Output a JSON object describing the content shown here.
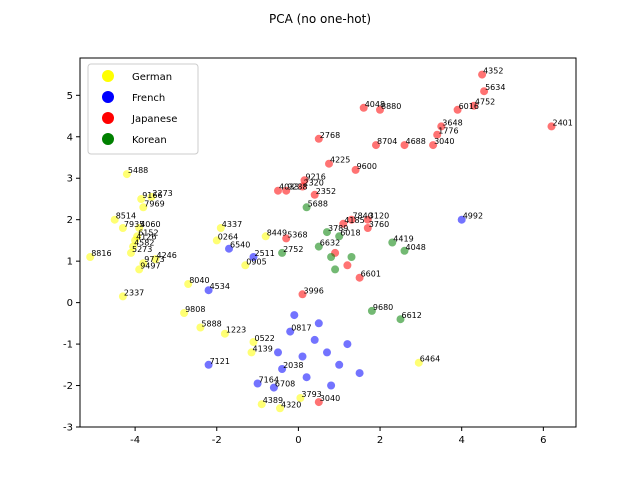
{
  "chart_data": {
    "type": "scatter",
    "title": "PCA (no one-hot)",
    "xlabel": "",
    "ylabel": "",
    "xlim": [
      -5.35,
      6.8
    ],
    "ylim": [
      -3.0,
      5.9
    ],
    "x_ticks": [
      -4,
      -2,
      0,
      2,
      4,
      6
    ],
    "y_ticks": [
      -3,
      -2,
      -1,
      0,
      1,
      2,
      3,
      4,
      5
    ],
    "grid": false,
    "legend_position": "top-left",
    "series": [
      {
        "name": "German",
        "color": "#ffff00",
        "points": [
          {
            "x": -4.2,
            "y": 3.1,
            "label": "5488"
          },
          {
            "x": -3.85,
            "y": 2.5,
            "label": "9166"
          },
          {
            "x": -3.6,
            "y": 2.55,
            "label": "2273"
          },
          {
            "x": -3.8,
            "y": 2.3,
            "label": "7969"
          },
          {
            "x": -4.5,
            "y": 2.0,
            "label": "8514"
          },
          {
            "x": -4.3,
            "y": 1.8,
            "label": "7935"
          },
          {
            "x": -3.9,
            "y": 1.8,
            "label": "4060"
          },
          {
            "x": -3.95,
            "y": 1.6,
            "label": "6152"
          },
          {
            "x": -4.0,
            "y": 1.5,
            "label": "4126"
          },
          {
            "x": -4.05,
            "y": 1.35,
            "label": "4582"
          },
          {
            "x": -4.1,
            "y": 1.2,
            "label": "5273"
          },
          {
            "x": -5.1,
            "y": 1.1,
            "label": "8816"
          },
          {
            "x": -3.5,
            "y": 1.05,
            "label": "4246"
          },
          {
            "x": -3.8,
            "y": 0.95,
            "label": "9773"
          },
          {
            "x": -3.9,
            "y": 0.8,
            "label": "9497"
          },
          {
            "x": -1.9,
            "y": 1.8,
            "label": "4337"
          },
          {
            "x": -2.0,
            "y": 1.5,
            "label": "0264"
          },
          {
            "x": -0.8,
            "y": 1.6,
            "label": "8449"
          },
          {
            "x": -1.3,
            "y": 0.9,
            "label": "0905"
          },
          {
            "x": -4.3,
            "y": 0.15,
            "label": "2337"
          },
          {
            "x": -2.7,
            "y": 0.45,
            "label": "8040"
          },
          {
            "x": -2.8,
            "y": -0.25,
            "label": "9808"
          },
          {
            "x": -2.4,
            "y": -0.6,
            "label": "5888"
          },
          {
            "x": -1.8,
            "y": -0.75,
            "label": "1223"
          },
          {
            "x": -1.1,
            "y": -0.95,
            "label": "0522"
          },
          {
            "x": -1.15,
            "y": -1.2,
            "label": "4139"
          },
          {
            "x": -0.9,
            "y": -2.45,
            "label": "4389"
          },
          {
            "x": -0.45,
            "y": -2.55,
            "label": "4320"
          },
          {
            "x": 0.05,
            "y": -2.3,
            "label": "3793"
          },
          {
            "x": 2.95,
            "y": -1.45,
            "label": "6464"
          }
        ]
      },
      {
        "name": "French",
        "color": "#0000ff",
        "points": [
          {
            "x": 4.0,
            "y": 2.0,
            "label": "4992"
          },
          {
            "x": -2.2,
            "y": 0.3,
            "label": "4534"
          },
          {
            "x": -1.7,
            "y": 1.3,
            "label": "6540"
          },
          {
            "x": -1.1,
            "y": 1.1,
            "label": "2511"
          },
          {
            "x": -2.2,
            "y": -1.5,
            "label": "7121"
          },
          {
            "x": -1.0,
            "y": -1.95,
            "label": "7164"
          },
          {
            "x": -0.6,
            "y": -2.05,
            "label": "6708"
          },
          {
            "x": -0.4,
            "y": -1.6,
            "label": "2038"
          },
          {
            "x": -0.2,
            "y": -0.7,
            "label": "0817"
          },
          {
            "x": 0.4,
            "y": -0.9,
            "label": ""
          },
          {
            "x": 0.7,
            "y": -1.2,
            "label": ""
          },
          {
            "x": 1.0,
            "y": -1.5,
            "label": ""
          },
          {
            "x": 0.2,
            "y": -1.8,
            "label": ""
          },
          {
            "x": 0.8,
            "y": -2.0,
            "label": ""
          },
          {
            "x": 1.2,
            "y": -1.0,
            "label": ""
          },
          {
            "x": -0.5,
            "y": -1.2,
            "label": ""
          },
          {
            "x": 0.1,
            "y": -1.3,
            "label": ""
          },
          {
            "x": 1.5,
            "y": -1.7,
            "label": ""
          },
          {
            "x": 0.5,
            "y": -0.5,
            "label": ""
          },
          {
            "x": -0.1,
            "y": -0.3,
            "label": ""
          }
        ]
      },
      {
        "name": "Japanese",
        "color": "#ff0000",
        "points": [
          {
            "x": 4.5,
            "y": 5.5,
            "label": "4352"
          },
          {
            "x": 4.55,
            "y": 5.1,
            "label": "5634"
          },
          {
            "x": 4.3,
            "y": 4.75,
            "label": "4752"
          },
          {
            "x": 3.9,
            "y": 4.65,
            "label": "6016"
          },
          {
            "x": 6.2,
            "y": 4.25,
            "label": "2401"
          },
          {
            "x": 3.5,
            "y": 4.25,
            "label": "3648"
          },
          {
            "x": 3.4,
            "y": 4.05,
            "label": "1776"
          },
          {
            "x": 3.3,
            "y": 3.8,
            "label": "3040"
          },
          {
            "x": 2.6,
            "y": 3.8,
            "label": "4688"
          },
          {
            "x": 1.9,
            "y": 3.8,
            "label": "8704"
          },
          {
            "x": 1.6,
            "y": 4.7,
            "label": "4048"
          },
          {
            "x": 2.0,
            "y": 4.65,
            "label": "8880"
          },
          {
            "x": 0.5,
            "y": 3.95,
            "label": "2768"
          },
          {
            "x": 0.75,
            "y": 3.35,
            "label": "4225"
          },
          {
            "x": 1.4,
            "y": 3.2,
            "label": "9600"
          },
          {
            "x": 0.15,
            "y": 2.95,
            "label": "9216"
          },
          {
            "x": 0.1,
            "y": 2.8,
            "label": "2320"
          },
          {
            "x": -0.5,
            "y": 2.7,
            "label": "4033"
          },
          {
            "x": -0.3,
            "y": 2.7,
            "label": "9238"
          },
          {
            "x": 0.4,
            "y": 2.6,
            "label": "2352"
          },
          {
            "x": 1.3,
            "y": 2.0,
            "label": "7840"
          },
          {
            "x": 1.7,
            "y": 2.0,
            "label": "3120"
          },
          {
            "x": 1.1,
            "y": 1.9,
            "label": "4185"
          },
          {
            "x": 1.7,
            "y": 1.8,
            "label": "3760"
          },
          {
            "x": -0.3,
            "y": 1.55,
            "label": "5368"
          },
          {
            "x": 0.1,
            "y": 0.2,
            "label": "3996"
          },
          {
            "x": 0.5,
            "y": -2.4,
            "label": "3040"
          },
          {
            "x": 1.5,
            "y": 0.6,
            "label": "6601"
          },
          {
            "x": 1.2,
            "y": 0.9,
            "label": ""
          },
          {
            "x": 0.9,
            "y": 1.2,
            "label": ""
          }
        ]
      },
      {
        "name": "Korean",
        "color": "#008000",
        "points": [
          {
            "x": 0.2,
            "y": 2.3,
            "label": "5688"
          },
          {
            "x": 0.7,
            "y": 1.7,
            "label": "3789"
          },
          {
            "x": 1.0,
            "y": 1.6,
            "label": "6018"
          },
          {
            "x": 2.3,
            "y": 1.45,
            "label": "4419"
          },
          {
            "x": 2.6,
            "y": 1.25,
            "label": "4048"
          },
          {
            "x": 0.5,
            "y": 1.35,
            "label": "6632"
          },
          {
            "x": -0.4,
            "y": 1.2,
            "label": "2752"
          },
          {
            "x": 0.8,
            "y": 1.1,
            "label": ""
          },
          {
            "x": 1.3,
            "y": 1.1,
            "label": ""
          },
          {
            "x": 2.5,
            "y": -0.4,
            "label": "6612"
          },
          {
            "x": 1.8,
            "y": -0.2,
            "label": "9680"
          },
          {
            "x": 0.9,
            "y": 0.8,
            "label": ""
          }
        ]
      }
    ]
  }
}
